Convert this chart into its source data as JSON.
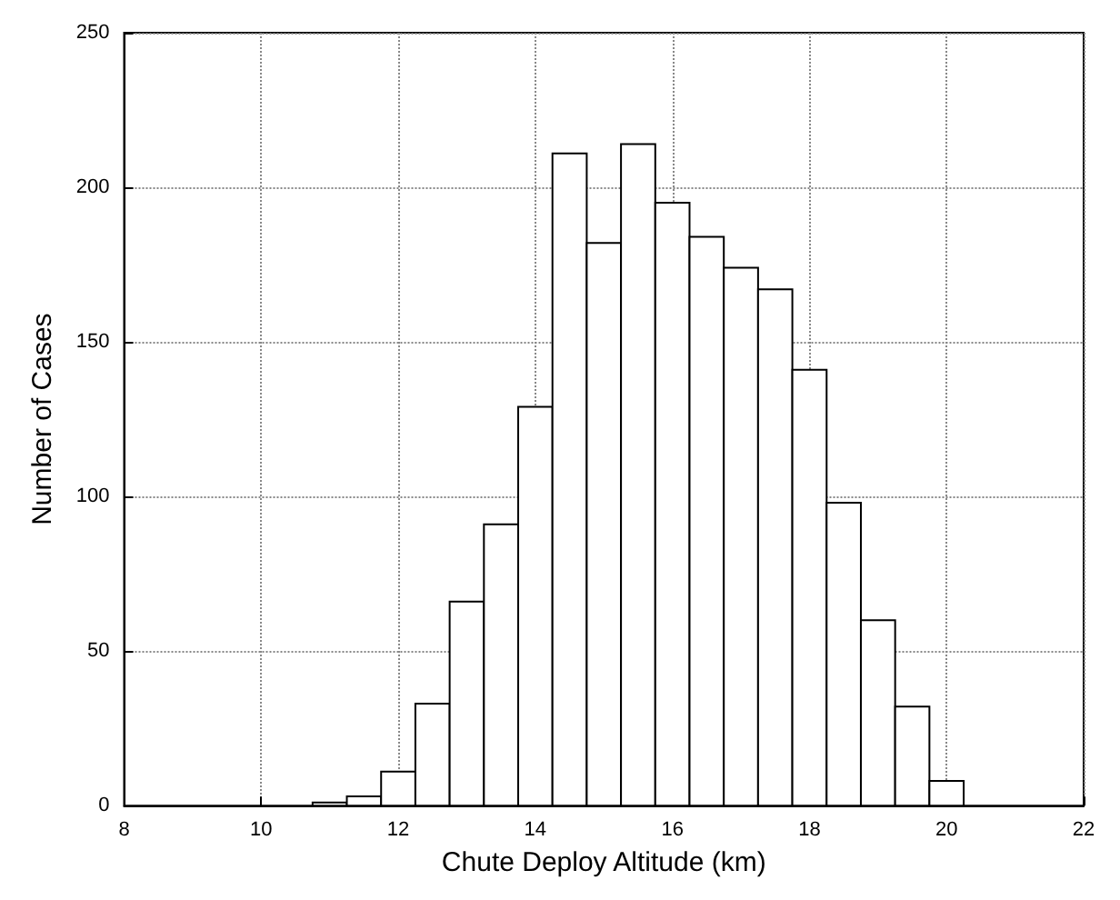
{
  "chart_data": {
    "type": "histogram",
    "xlabel": "Chute Deploy Altitude (km)",
    "ylabel": "Number of Cases",
    "bins": [
      10.75,
      11.25,
      11.75,
      12.25,
      12.75,
      13.25,
      13.75,
      14.25,
      14.75,
      15.25,
      15.75,
      16.25,
      16.75,
      17.25,
      17.75,
      18.25,
      18.75,
      19.25,
      19.75,
      20.25
    ],
    "values": [
      1,
      3,
      11,
      33,
      66,
      91,
      129,
      211,
      182,
      214,
      195,
      184,
      174,
      167,
      141,
      98,
      60,
      32,
      8
    ],
    "color": "#ffffff",
    "xlim": [
      8,
      22
    ],
    "xticks": [
      8,
      10,
      12,
      14,
      16,
      18,
      20,
      22
    ],
    "ylim": [
      0,
      250
    ],
    "yticks": [
      0,
      50,
      100,
      150,
      200,
      250
    ],
    "grid": true
  }
}
